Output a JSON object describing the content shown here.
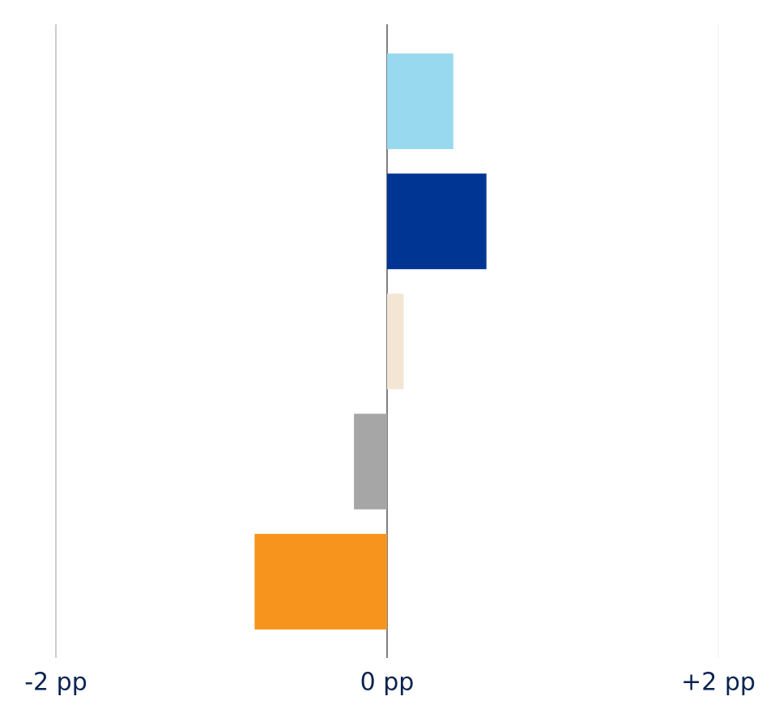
{
  "chart_data": {
    "type": "bar",
    "orientation": "horizontal",
    "categories": [
      null,
      null,
      null,
      null,
      null
    ],
    "values": [
      0.4,
      0.6,
      0.1,
      -0.2,
      -0.8
    ],
    "colors": [
      "#99d9f0",
      "#003594",
      "#f3e6d5",
      "#a6a6a6",
      "#f7941d"
    ],
    "xlim": [
      -2,
      2
    ],
    "xticks": [
      {
        "value": -2,
        "label": "-2 pp"
      },
      {
        "value": 0,
        "label": "0 pp"
      },
      {
        "value": 2,
        "label": "+2 pp"
      }
    ],
    "grid": true
  }
}
